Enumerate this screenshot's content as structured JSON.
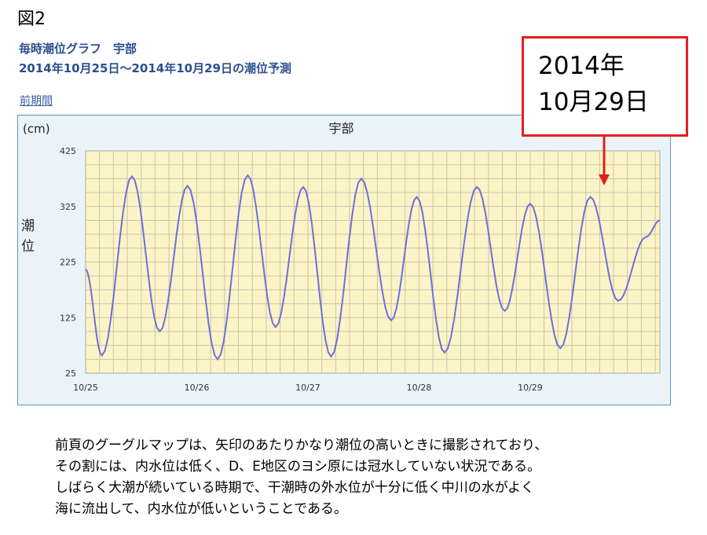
{
  "figure_label": "図2",
  "header": {
    "title": "毎時潮位グラフ　宇部",
    "subtitle": "2014年10月25日～2014年10月29日の潮位予測",
    "prev_link": "前期間"
  },
  "callout": {
    "line1": "2014年",
    "line2": "10月29日",
    "border_color": "#e02020"
  },
  "caption": {
    "lines": [
      "前頁のグーグルマップは、矢印のあたりかなり潮位の高いときに撮影されており、",
      "その割には、内水位は低く、D、E地区のヨシ原には冠水していない状況である。",
      "しばらく大潮が続いている時期で、干潮時の外水位が十分に低く中川の水がよく",
      "海に流出して、内水位が低いということである。"
    ]
  },
  "chart_data": {
    "type": "line",
    "title": "宇部",
    "unit_label": "(cm)",
    "ylabel": "潮位",
    "ylim": [
      25,
      425
    ],
    "yticks": [
      25,
      125,
      225,
      325,
      425
    ],
    "xlim": [
      0,
      124
    ],
    "xtick_positions": [
      0,
      24,
      48,
      72,
      96
    ],
    "xtick_labels": [
      "10/25",
      "10/26",
      "10/27",
      "10/28",
      "10/29"
    ],
    "grid": true,
    "series": [
      {
        "name": "",
        "color": "#6f6fdb",
        "extrema": [
          {
            "hour": 0,
            "value": 212
          },
          {
            "hour": 3.5,
            "value": 57
          },
          {
            "hour": 10,
            "value": 379
          },
          {
            "hour": 16,
            "value": 100
          },
          {
            "hour": 22,
            "value": 362
          },
          {
            "hour": 28.5,
            "value": 50
          },
          {
            "hour": 35,
            "value": 381
          },
          {
            "hour": 41,
            "value": 108
          },
          {
            "hour": 47,
            "value": 360
          },
          {
            "hour": 53,
            "value": 55
          },
          {
            "hour": 59.5,
            "value": 375
          },
          {
            "hour": 66,
            "value": 120
          },
          {
            "hour": 71.5,
            "value": 342
          },
          {
            "hour": 77.5,
            "value": 62
          },
          {
            "hour": 84.5,
            "value": 360
          },
          {
            "hour": 90.5,
            "value": 137
          },
          {
            "hour": 96,
            "value": 330
          },
          {
            "hour": 102.5,
            "value": 70
          },
          {
            "hour": 109,
            "value": 342
          },
          {
            "hour": 115,
            "value": 155
          },
          {
            "hour": 121,
            "value": 270
          },
          {
            "hour": 124,
            "value": 300
          }
        ]
      }
    ],
    "background_color": "#fbf4c7"
  }
}
